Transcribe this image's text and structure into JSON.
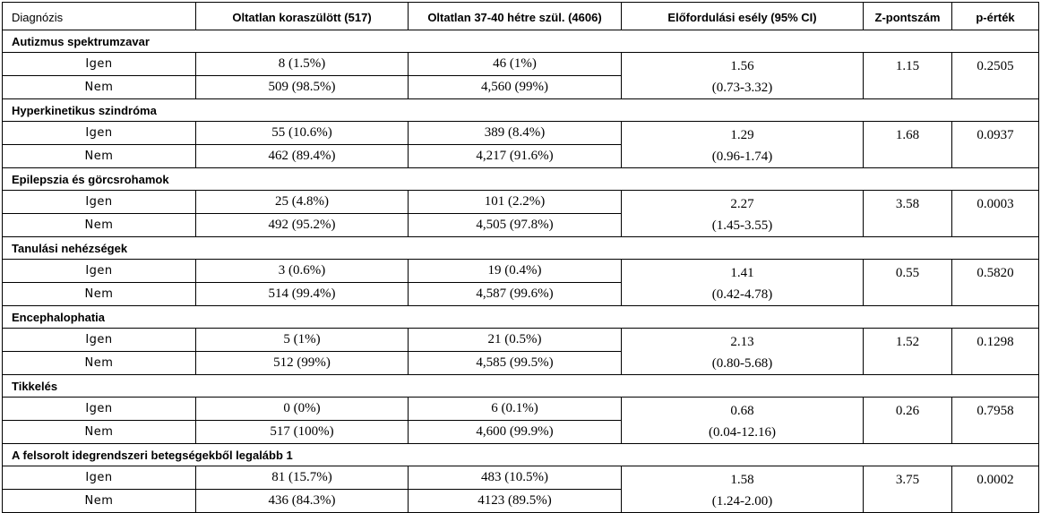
{
  "headers": [
    "Diagnózis",
    "Oltatlan koraszülött (517)",
    "Oltatlan 37-40 hétre szül. (4606)",
    "Előfordulási esély (95% CI)",
    "Z-pontszám",
    "p-érték"
  ],
  "groups": [
    {
      "title": "Autizmus spektrumzavar",
      "yes": {
        "label": "Igen",
        "preterm": "8 (1.5%)",
        "term": "46 (1%)"
      },
      "no": {
        "label": "Nem",
        "preterm": "509 (98.5%)",
        "term": "4,560 (99%)"
      },
      "or": "1.56",
      "ci": "(0.73-3.32)",
      "z": "1.15",
      "p": "0.2505"
    },
    {
      "title": "Hyperkinetikus szindróma",
      "yes": {
        "label": "Igen",
        "preterm": "55 (10.6%)",
        "term": "389 (8.4%)"
      },
      "no": {
        "label": "Nem",
        "preterm": "462 (89.4%)",
        "term": "4,217 (91.6%)"
      },
      "or": "1.29",
      "ci": "(0.96-1.74)",
      "z": "1.68",
      "p": "0.0937"
    },
    {
      "title": "Epilepszia és görcsrohamok",
      "yes": {
        "label": "Igen",
        "preterm": "25 (4.8%)",
        "term": "101 (2.2%)"
      },
      "no": {
        "label": "Nem",
        "preterm": "492 (95.2%)",
        "term": "4,505 (97.8%)"
      },
      "or": "2.27",
      "ci": "(1.45-3.55)",
      "z": "3.58",
      "p": "0.0003"
    },
    {
      "title": "Tanulási nehézségek",
      "yes": {
        "label": "Igen",
        "preterm": "3 (0.6%)",
        "term": "19 (0.4%)"
      },
      "no": {
        "label": "Nem",
        "preterm": "514 (99.4%)",
        "term": "4,587 (99.6%)"
      },
      "or": "1.41",
      "ci": "(0.42-4.78)",
      "z": "0.55",
      "p": "0.5820"
    },
    {
      "title": "Encephalophatia",
      "yes": {
        "label": "Igen",
        "preterm": "5 (1%)",
        "term": "21 (0.5%)"
      },
      "no": {
        "label": "Nem",
        "preterm": "512 (99%)",
        "term": "4,585 (99.5%)"
      },
      "or": "2.13",
      "ci": "(0.80-5.68)",
      "z": "1.52",
      "p": "0.1298"
    },
    {
      "title": "Tikkelés",
      "yes": {
        "label": "Igen",
        "preterm": "0 (0%)",
        "term": "6 (0.1%)"
      },
      "no": {
        "label": "Nem",
        "preterm": "517 (100%)",
        "term": "4,600 (99.9%)"
      },
      "or": "0.68",
      "ci": "(0.04-12.16)",
      "z": "0.26",
      "p": "0.7958"
    },
    {
      "title": "A felsorolt idegrendszeri betegségekből legalább 1",
      "yes": {
        "label": "Igen",
        "preterm": "81 (15.7%)",
        "term": "483 (10.5%)"
      },
      "no": {
        "label": "Nem",
        "preterm": "436 (84.3%)",
        "term": "4123 (89.5%)"
      },
      "or": "1.58",
      "ci": "(1.24-2.00)",
      "z": "3.75",
      "p": "0.0002"
    }
  ]
}
